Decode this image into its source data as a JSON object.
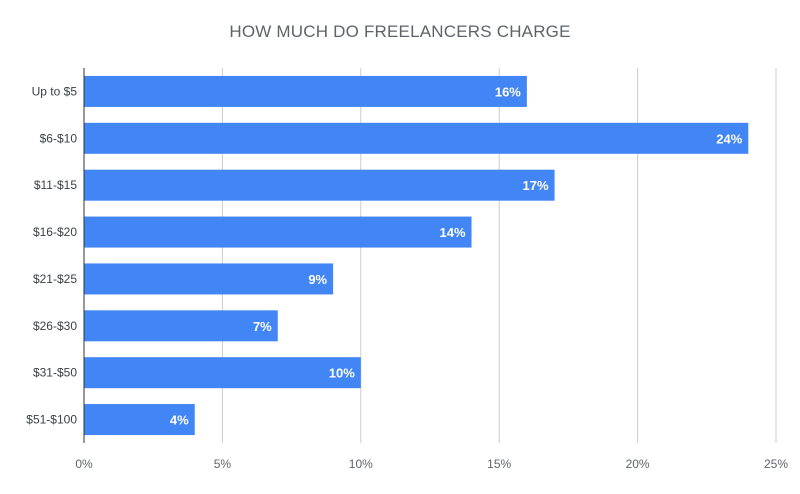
{
  "chart_data": {
    "type": "bar",
    "orientation": "horizontal",
    "title": "HOW MUCH DO FREELANCERS CHARGE",
    "categories": [
      "Up to $5",
      "$6-$10",
      "$11-$15",
      "$16-$20",
      "$21-$25",
      "$26-$30",
      "$31-$50",
      "$51-$100"
    ],
    "values": [
      16,
      24,
      17,
      14,
      9,
      7,
      10,
      4
    ],
    "data_labels": [
      "16%",
      "24%",
      "17%",
      "14%",
      "9%",
      "7%",
      "10%",
      "4%"
    ],
    "xlim": [
      0,
      25
    ],
    "x_ticks": [
      0,
      5,
      10,
      15,
      20,
      25
    ],
    "x_tick_labels": [
      "0%",
      "5%",
      "10%",
      "15%",
      "20%",
      "25%"
    ],
    "grid": true,
    "legend": "none",
    "colors": {
      "bar": "#4285f4",
      "grid": "#cccccc",
      "axis": "#333333"
    }
  }
}
